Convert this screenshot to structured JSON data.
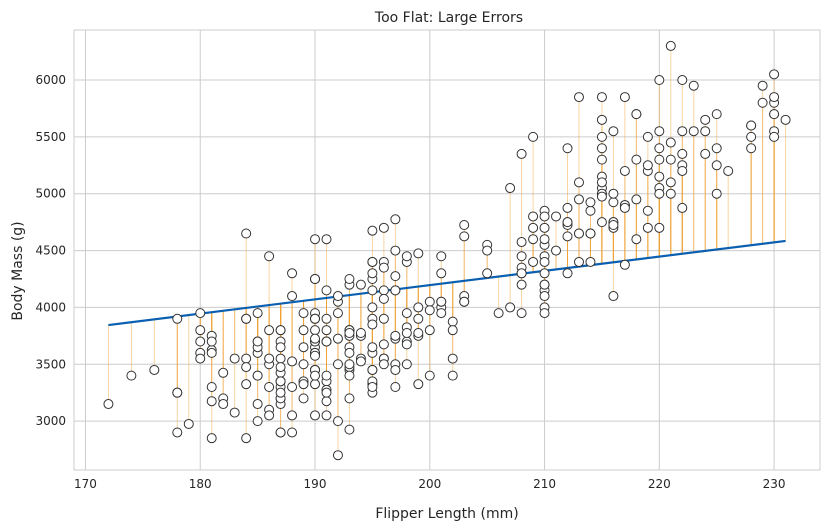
{
  "chart_data": {
    "type": "scatter",
    "title": "Too Flat: Large Errors",
    "xlabel": "Flipper Length (mm)",
    "ylabel": "Body Mass (g)",
    "xlim": [
      169,
      234
    ],
    "ylim": [
      2570,
      6440
    ],
    "xticks": [
      170,
      180,
      190,
      200,
      210,
      220,
      230
    ],
    "yticks": [
      3000,
      3500,
      4000,
      4500,
      5000,
      5500,
      6000
    ],
    "grid": true,
    "colors": {
      "points_edge": "#333333",
      "points_fill": "#ffffff",
      "line": "#0a5fb0",
      "residuals": "#f0a030",
      "grid": "#cccccc",
      "spine": "#cccccc"
    },
    "fit_line": {
      "x": [
        172,
        231
      ],
      "y": [
        3845,
        4585
      ]
    },
    "x": [
      181,
      186,
      195,
      193,
      190,
      181,
      195,
      193,
      190,
      186,
      180,
      182,
      191,
      198,
      185,
      195,
      197,
      184,
      194,
      174,
      180,
      189,
      185,
      180,
      187,
      183,
      187,
      172,
      180,
      178,
      178,
      188,
      184,
      195,
      196,
      190,
      180,
      181,
      184,
      182,
      195,
      186,
      196,
      185,
      190,
      182,
      179,
      190,
      191,
      186,
      188,
      190,
      200,
      187,
      191,
      186,
      193,
      181,
      194,
      185,
      195,
      185,
      192,
      184,
      192,
      195,
      188,
      190,
      198,
      190,
      190,
      196,
      197,
      190,
      195,
      191,
      184,
      187,
      195,
      189,
      196,
      187,
      193,
      191,
      194,
      190,
      189,
      189,
      190,
      202,
      205,
      185,
      186,
      187,
      208,
      190,
      196,
      178,
      192,
      192,
      203,
      183,
      190,
      193,
      184,
      199,
      190,
      181,
      197,
      198,
      191,
      193,
      197,
      191,
      196,
      188,
      199,
      189,
      189,
      187,
      198,
      176,
      202,
      186,
      199,
      191,
      195,
      191,
      210,
      190,
      197,
      193,
      199,
      187,
      190,
      191,
      200,
      185,
      193,
      193,
      187,
      188,
      190,
      192,
      185,
      190,
      184,
      195,
      193,
      187,
      201,
      211,
      230,
      210,
      218,
      215,
      210,
      211,
      219,
      209,
      215,
      214,
      216,
      214,
      213,
      210,
      217,
      210,
      221,
      209,
      222,
      218,
      215,
      213,
      215,
      215,
      215,
      216,
      215,
      210,
      220,
      222,
      209,
      207,
      230,
      220,
      220,
      213,
      219,
      208,
      208,
      208,
      225,
      210,
      216,
      222,
      217,
      210,
      225,
      213,
      215,
      210,
      220,
      210,
      225,
      217,
      220,
      208,
      220,
      208,
      224,
      208,
      221,
      214,
      231,
      219,
      230,
      214,
      229,
      220,
      223,
      216,
      221,
      221,
      217,
      216,
      230,
      209,
      220,
      215,
      223,
      212,
      221,
      212,
      224,
      212,
      228,
      218,
      218,
      212,
      230,
      218,
      228,
      212,
      224,
      214,
      226,
      216,
      222,
      203,
      225,
      219,
      228,
      215,
      228,
      216,
      215,
      210,
      219,
      208,
      209,
      216,
      229,
      213,
      230,
      217,
      230,
      217,
      222,
      214,
      215,
      222,
      212,
      213,
      192,
      196,
      193,
      188,
      197,
      198,
      178,
      197,
      195,
      198,
      193,
      194,
      185,
      201,
      190,
      201,
      197,
      181,
      190,
      195,
      181,
      191,
      187,
      193,
      195,
      197,
      200,
      200,
      191,
      205,
      187,
      201,
      187,
      203,
      195,
      199,
      195,
      210,
      192,
      205,
      210,
      187,
      196,
      196,
      196,
      201,
      190,
      212,
      187,
      198,
      199,
      201,
      193,
      203,
      187,
      197,
      191,
      203,
      202,
      194,
      206,
      189,
      195,
      207,
      202,
      193,
      210,
      198
    ],
    "y": [
      3750,
      3800,
      3250,
      3450,
      3650,
      3625,
      4675,
      3475,
      4250,
      3300,
      3700,
      3200,
      3800,
      4400,
      3700,
      3450,
      4500,
      3325,
      4200,
      3400,
      3600,
      3800,
      3950,
      3800,
      3800,
      3550,
      3200,
      3150,
      3950,
      3250,
      3900,
      3300,
      3900,
      3325,
      4150,
      3950,
      3550,
      3300,
      4650,
      3150,
      3900,
      3100,
      4400,
      3000,
      4600,
      3425,
      2975,
      3450,
      4150,
      3500,
      4300,
      3450,
      4050,
      2900,
      3700,
      3550,
      3800,
      2850,
      3750,
      3150,
      4400,
      3600,
      4050,
      2850,
      3950,
      3350,
      4100,
      3050,
      4450,
      3600,
      3900,
      3550,
      4150,
      3700,
      4250,
      3700,
      3900,
      3550,
      4000,
      3200,
      4700,
      3800,
      4200,
      3350,
      3550,
      3800,
      3500,
      3950,
      3600,
      3550,
      4300,
      3400,
      4450,
      3300,
      4300,
      3700,
      4350,
      2900,
      4100,
      3725,
      4725,
      3075,
      4250,
      2925,
      3550,
      3750,
      3900,
      3175,
      4775,
      3825,
      4600,
      3200,
      4275,
      3900,
      4075,
      2900,
      3775,
      3350,
      3325,
      3150,
      3500,
      3450,
      3875,
      3050,
      4000,
      3275,
      4300,
      3050,
      4000,
      3325,
      3500,
      3500,
      4475,
      3425,
      3900,
      3175,
      3975,
      3400,
      4250,
      3400,
      3475,
      3050,
      3725,
      3000,
      3650,
      4250,
      3475,
      3450,
      3750,
      3700,
      4000,
      4500,
      5700,
      4450,
      5700,
      5400,
      4550,
      4800,
      5200,
      4400,
      5150,
      4650,
      5550,
      4650,
      5850,
      4200,
      5850,
      4150,
      6300,
      4800,
      5350,
      5700,
      5000,
      4400,
      5050,
      5000,
      5100,
      4100,
      5650,
      4600,
      5550,
      5250,
      4700,
      5050,
      6050,
      5150,
      5400,
      4950,
      5250,
      4350,
      5350,
      3950,
      5700,
      4300,
      4750,
      5550,
      4900,
      4200,
      5400,
      5100,
      5300,
      4850,
      5300,
      4400,
      5000,
      4900,
      5050,
      4300,
      5000,
      4450,
      5550,
      4200,
      5300,
      4400,
      5650,
      4700,
      5700,
      4650,
      5800,
      4700,
      5550,
      4750,
      5000,
      5100,
      5200,
      4700,
      5800,
      4600,
      6000,
      4750,
      5950,
      4625,
      5450,
      4725,
      5350,
      4750,
      5600,
      4600,
      5300,
      4875,
      5550,
      4950,
      5400,
      4750,
      5650,
      4850,
      5200,
      4925,
      4875,
      4625,
      5250,
      4850,
      5600,
      4975,
      5500,
      4725,
      5500,
      4700,
      5500,
      4575,
      5500,
      5000,
      5950,
      4650,
      5500,
      4375,
      5850,
      4875,
      6000,
      4925,
      5850,
      5200,
      5400,
      4650,
      3500,
      3900,
      3650,
      3525,
      3725,
      3950,
      3250,
      3750,
      4150,
      3700,
      3800,
      3775,
      3700,
      4050,
      3575,
      4050,
      3300,
      3700,
      3450,
      4400,
      3600,
      3400,
      2900,
      3800,
      3300,
      4150,
      3400,
      3800,
      3700,
      4550,
      3200,
      4300,
      3350,
      4100,
      3600,
      3900,
      3850,
      4800,
      2700,
      4500,
      3950,
      3650,
      3550,
      3500,
      3675,
      4450,
      3400,
      4300,
      3250,
      3675,
      3325,
      3950,
      3600,
      4050,
      3350,
      3450,
      3250,
      4050,
      3800,
      3525,
      3950,
      3650,
      3650,
      4000,
      3400,
      3775,
      4100,
      3775
    ]
  }
}
